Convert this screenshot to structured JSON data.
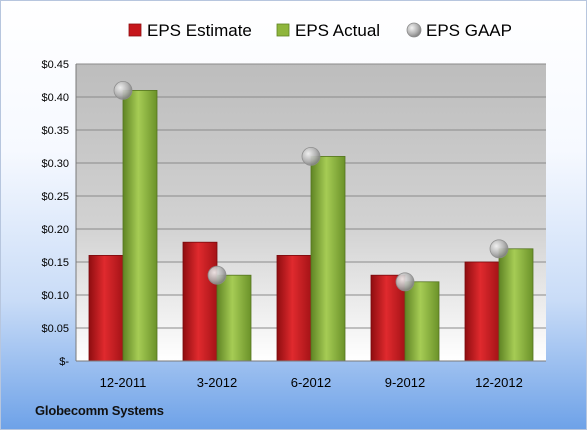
{
  "company": "Globecomm Systems",
  "chart_data": {
    "type": "bar",
    "categories": [
      "12-2011",
      "3-2012",
      "6-2012",
      "9-2012",
      "12-2012"
    ],
    "series": [
      {
        "name": "EPS Estimate",
        "values": [
          0.16,
          0.18,
          0.16,
          0.13,
          0.15
        ],
        "color": "#c0171c"
      },
      {
        "name": "EPS Actual",
        "values": [
          0.41,
          0.13,
          0.31,
          0.12,
          0.17
        ],
        "color": "#8db33b"
      },
      {
        "name": "EPS GAAP",
        "values": [
          0.41,
          0.13,
          0.31,
          0.12,
          0.17
        ],
        "color": "#b5b5b5",
        "marker": "circle"
      }
    ],
    "yticks": [
      "$-",
      "$0.05",
      "$0.10",
      "$0.15",
      "$0.20",
      "$0.25",
      "$0.30",
      "$0.35",
      "$0.40",
      "$0.45"
    ],
    "ylim": [
      0,
      0.45
    ],
    "legend_position": "top",
    "grid": true
  }
}
